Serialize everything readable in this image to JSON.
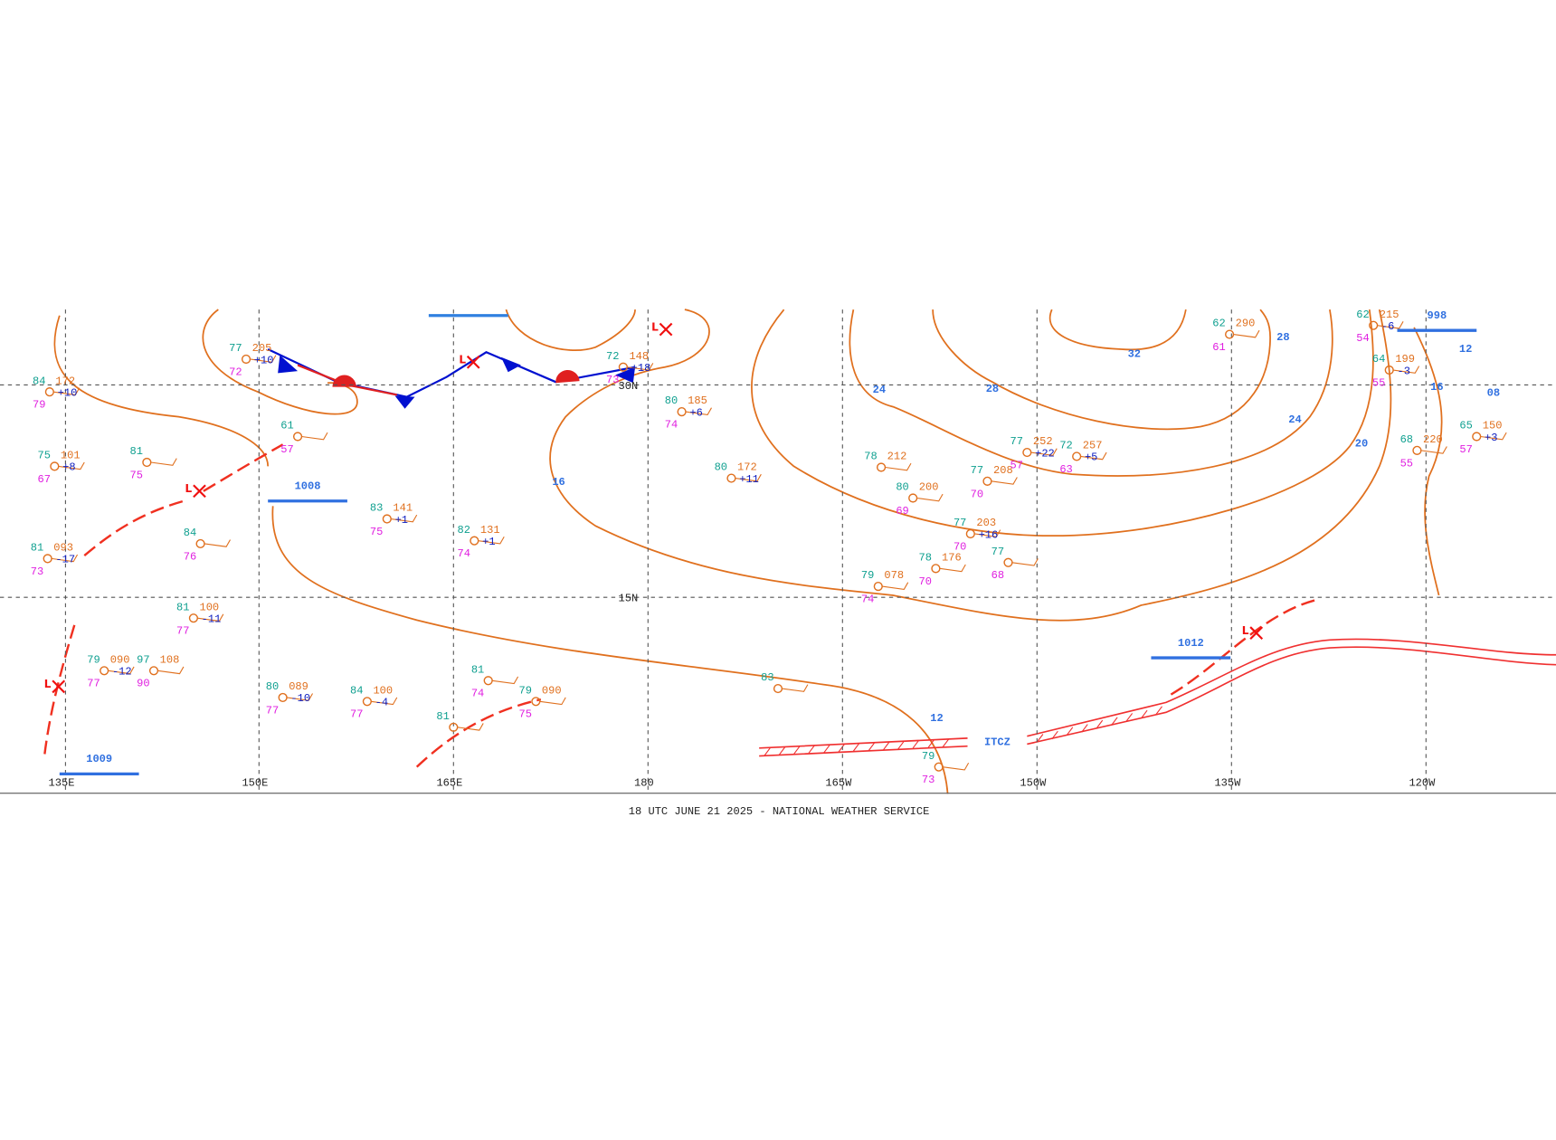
{
  "footer": "18 UTC JUNE 21 2025 - NATIONAL WEATHER SERVICE",
  "longitudes": [
    "135E",
    "150E",
    "165E",
    "180",
    "165W",
    "150W",
    "135W",
    "120W"
  ],
  "latitudes": [
    "30N",
    "15N"
  ],
  "centers": [
    {
      "symbol": "L",
      "pressure": "1009"
    },
    {
      "symbol": "L",
      "pressure": "1008"
    },
    {
      "symbol": "L"
    },
    {
      "symbol": "L"
    },
    {
      "symbol": "L",
      "pressure": "1012"
    },
    {
      "pressure": "998"
    }
  ],
  "isobar_labels": [
    "16",
    "12",
    "24",
    "28",
    "32",
    "28",
    "24",
    "20",
    "16",
    "12",
    "08"
  ],
  "itcz": "ITCZ",
  "stations": [
    {
      "temp": "84",
      "pressure": "172",
      "tendency": "+10",
      "dew": "79"
    },
    {
      "temp": "75",
      "pressure": "101",
      "tendency": "+8",
      "dew": "67"
    },
    {
      "temp": "81",
      "pressure": "093",
      "tendency": "-17",
      "dew": "73"
    },
    {
      "temp": "81",
      "dew": "75"
    },
    {
      "temp": "84",
      "dew": "76"
    },
    {
      "temp": "81",
      "pressure": "100",
      "tendency": "-11",
      "dew": "77"
    },
    {
      "temp": "77",
      "pressure": "205",
      "tendency": "+10",
      "dew": "72"
    },
    {
      "temp": "61",
      "dew": "57"
    },
    {
      "temp": "79",
      "pressure": "090",
      "tendency": "-12",
      "dew": "77"
    },
    {
      "temp": "97",
      "pressure": "108",
      "dew": "90"
    },
    {
      "temp": "80",
      "pressure": "089",
      "tendency": "-10",
      "dew": "77"
    },
    {
      "temp": "84",
      "pressure": "100",
      "tendency": "-4",
      "dew": "77"
    },
    {
      "temp": "83",
      "pressure": "141",
      "tendency": "+1",
      "dew": "75"
    },
    {
      "temp": "82",
      "pressure": "131",
      "tendency": "+1",
      "dew": "74"
    },
    {
      "temp": "80",
      "pressure": "185",
      "tendency": "+6",
      "dew": "74"
    },
    {
      "temp": "80",
      "pressure": "172",
      "tendency": "+11"
    },
    {
      "temp": "72",
      "pressure": "148",
      "tendency": "+18",
      "dew": "73"
    },
    {
      "temp": "78",
      "pressure": "212"
    },
    {
      "temp": "80",
      "pressure": "200",
      "dew": "69"
    },
    {
      "temp": "77",
      "pressure": "208",
      "dew": "70"
    },
    {
      "temp": "77",
      "pressure": "203",
      "tendency": "+16",
      "dew": "70"
    },
    {
      "temp": "78",
      "pressure": "176",
      "dew": "70"
    },
    {
      "temp": "79",
      "pressure": "078",
      "dew": "74"
    },
    {
      "temp": "77",
      "dew": "68"
    },
    {
      "temp": "77",
      "pressure": "252",
      "tendency": "+22",
      "dew": "57"
    },
    {
      "temp": "72",
      "pressure": "257",
      "tendency": "+5",
      "dew": "63"
    },
    {
      "temp": "62",
      "pressure": "290",
      "dew": "61"
    },
    {
      "temp": "62",
      "pressure": "215",
      "tendency": "-6",
      "dew": "54"
    },
    {
      "temp": "64",
      "pressure": "199",
      "tendency": "-3",
      "dew": "55"
    },
    {
      "temp": "68",
      "pressure": "220",
      "dew": "55"
    },
    {
      "temp": "65",
      "pressure": "150",
      "tendency": "+3",
      "dew": "57"
    },
    {
      "temp": "83"
    },
    {
      "temp": "79",
      "dew": "73"
    },
    {
      "temp": "79",
      "pressure": "090",
      "dew": "75"
    },
    {
      "temp": "81",
      "dew": "74"
    },
    {
      "temp": "81"
    }
  ]
}
